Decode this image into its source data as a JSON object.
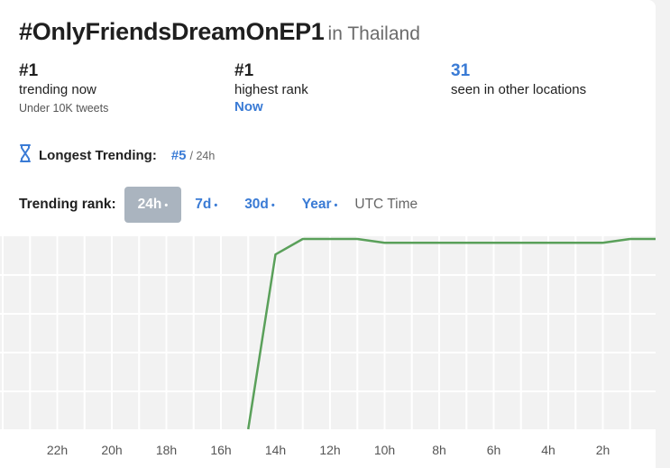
{
  "header": {
    "hashtag": "#OnlyFriendsDreamOnEP1",
    "location": "in Thailand"
  },
  "stats": {
    "trending_now": {
      "value": "#1",
      "label": "trending now",
      "sub": "Under 10K tweets"
    },
    "highest_rank": {
      "value": "#1",
      "label": "highest rank",
      "sub": "Now"
    },
    "other_locations": {
      "value": "31",
      "label": "seen in other locations"
    }
  },
  "longest": {
    "label": "Longest Trending:",
    "rank": "#5",
    "period": "/ 24h"
  },
  "rankbar": {
    "label": "Trending rank:",
    "tabs": [
      {
        "label": "24h",
        "dot": "•"
      },
      {
        "label": "7d",
        "dot": "•"
      },
      {
        "label": "30d",
        "dot": "•"
      },
      {
        "label": "Year",
        "dot": "•"
      }
    ],
    "active": "24h",
    "utc": "UTC Time"
  },
  "colors": {
    "accent": "#3a7bd5",
    "line": "#5aa05a",
    "active_tab": "#aab4bf",
    "chart_bg": "#f2f2f2",
    "grid": "#ffffff"
  },
  "chart_data": {
    "type": "line",
    "x_tick_labels": [
      "22h",
      "20h",
      "18h",
      "16h",
      "14h",
      "12h",
      "10h",
      "8h",
      "6h",
      "4h",
      "2h"
    ],
    "x_axis": "hours ago (reversed)",
    "series": [
      {
        "values": [
          {
            "h": 15,
            "rank": 50
          },
          {
            "h": 14,
            "rank": 5
          },
          {
            "h": 13,
            "rank": 1
          },
          {
            "h": 11,
            "rank": 1
          },
          {
            "h": 10,
            "rank": 2
          },
          {
            "h": 2,
            "rank": 2
          },
          {
            "h": 1,
            "rank": 1
          },
          {
            "h": 0,
            "rank": 1
          }
        ]
      }
    ],
    "grid": true
  }
}
